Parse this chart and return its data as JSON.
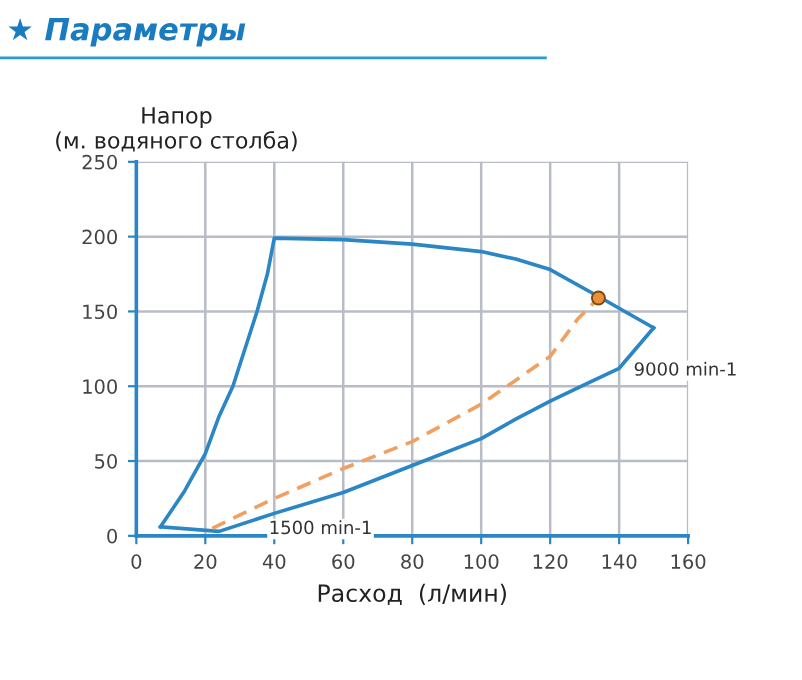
{
  "chart_data": {
    "type": "line",
    "title": "★ Параметры",
    "xlabel": "Расход  (л/мин)",
    "ylabel": "Напор\n(м. водяного столба)",
    "xlim": [
      0,
      160
    ],
    "xticks": [
      0,
      20,
      40,
      60,
      80,
      100,
      120,
      140,
      160
    ],
    "ylim": [
      0,
      250
    ],
    "yticks": [
      0,
      50,
      100,
      150,
      200,
      250
    ],
    "grid": true,
    "series": [
      {
        "color": "#2a86c4",
        "line_style": "solid",
        "x": [
          7,
          14,
          20,
          24,
          28,
          35,
          38,
          40,
          60,
          80,
          100,
          110,
          120,
          134,
          150
        ],
        "values": [
          6,
          30,
          55,
          80,
          100,
          150,
          175,
          199,
          198,
          195,
          190,
          185,
          178,
          160,
          139
        ]
      },
      {
        "color": "#2a86c4",
        "line_style": "solid",
        "x": [
          7,
          24,
          40,
          60,
          80,
          100,
          110,
          120,
          130,
          140,
          150
        ],
        "values": [
          6,
          3,
          15,
          29,
          47,
          65,
          78,
          90,
          101,
          112,
          139
        ]
      },
      {
        "color": "#f0a060",
        "line_style": "dashed",
        "x": [
          22,
          40,
          60,
          80,
          100,
          120,
          128,
          134
        ],
        "values": [
          5,
          25,
          45,
          63,
          88,
          120,
          145,
          159
        ]
      },
      {
        "type": "scatter",
        "color": "#e8913a",
        "marker": "circle",
        "x": [
          134
        ],
        "values": [
          159
        ]
      }
    ],
    "annotations": [
      "9000 min-1",
      "1500 min-1"
    ]
  }
}
